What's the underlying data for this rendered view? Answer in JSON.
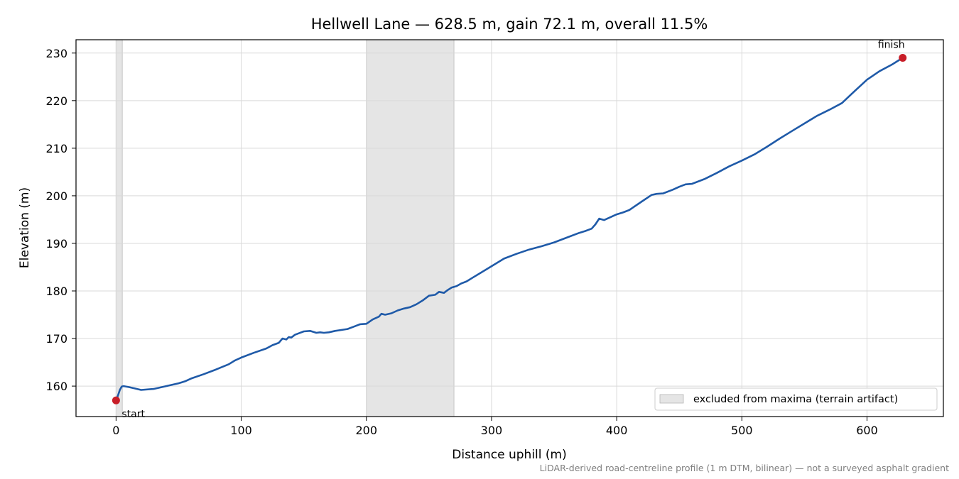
{
  "chart_data": {
    "type": "line",
    "title": "Hellwell Lane — 628.5 m, gain 72.1 m, overall 11.5%",
    "xlabel": "Distance uphill (m)",
    "ylabel": "Elevation (m)",
    "xlim": [
      -32,
      661
    ],
    "ylim": [
      153.6,
      232.8
    ],
    "xticks": [
      0,
      100,
      200,
      300,
      400,
      500,
      600
    ],
    "yticks": [
      160,
      170,
      180,
      190,
      200,
      210,
      220,
      230
    ],
    "grid": true,
    "legend_position": "lower-right",
    "colors": {
      "line": "#1f5aa8",
      "marker": "#c81e28",
      "band": "#d3d3d3"
    },
    "excluded_ranges": [
      [
        0,
        5
      ],
      [
        200,
        270
      ]
    ],
    "legend": {
      "label": "excluded from maxima (terrain artifact)"
    },
    "markers": [
      {
        "label": "start",
        "x": 0,
        "y": 157.0
      },
      {
        "label": "finish",
        "x": 628.5,
        "y": 229.0
      }
    ],
    "footnote": "LiDAR-derived road-centreline profile (1 m DTM, bilinear) — not a surveyed asphalt gradient",
    "series": [
      {
        "x": [
          0,
          1.5,
          3,
          4.5,
          6,
          10,
          15,
          20,
          30,
          40,
          50,
          55,
          60,
          70,
          80,
          90,
          95,
          100,
          110,
          120,
          125,
          130,
          133,
          136,
          138,
          140,
          143,
          146,
          150,
          155,
          160,
          163,
          166,
          170,
          175,
          180,
          185,
          190,
          195,
          200,
          205,
          210,
          212,
          215,
          220,
          225,
          230,
          235,
          240,
          245,
          250,
          255,
          258,
          262,
          265,
          268,
          272,
          276,
          280,
          285,
          290,
          300,
          305,
          310,
          320,
          330,
          340,
          350,
          360,
          370,
          375,
          380,
          383,
          386,
          390,
          395,
          400,
          405,
          410,
          420,
          428,
          432,
          437,
          445,
          450,
          455,
          460,
          470,
          480,
          490,
          500,
          510,
          520,
          530,
          540,
          550,
          560,
          570,
          580,
          588,
          595,
          600,
          605,
          610,
          620,
          628.5
        ],
        "y": [
          157.0,
          158.0,
          159.2,
          159.9,
          160.0,
          159.8,
          159.5,
          159.2,
          159.4,
          160.0,
          160.6,
          161.0,
          161.6,
          162.5,
          163.5,
          164.6,
          165.4,
          166.0,
          167.0,
          167.9,
          168.6,
          169.1,
          170.0,
          169.8,
          170.3,
          170.2,
          170.8,
          171.1,
          171.5,
          171.6,
          171.2,
          171.3,
          171.2,
          171.3,
          171.6,
          171.8,
          172.0,
          172.5,
          173.0,
          173.1,
          174.0,
          174.6,
          175.2,
          175.0,
          175.3,
          175.9,
          176.3,
          176.6,
          177.2,
          178.0,
          179.0,
          179.2,
          179.8,
          179.6,
          180.2,
          180.7,
          181.0,
          181.6,
          182.0,
          182.8,
          183.6,
          185.2,
          186.0,
          186.8,
          187.8,
          188.7,
          189.4,
          190.2,
          191.2,
          192.2,
          192.6,
          193.1,
          194.0,
          195.2,
          194.9,
          195.5,
          196.1,
          196.5,
          197.0,
          198.8,
          200.2,
          200.4,
          200.5,
          201.3,
          201.9,
          202.4,
          202.5,
          203.5,
          204.8,
          206.2,
          207.4,
          208.7,
          210.3,
          212.0,
          213.6,
          215.2,
          216.8,
          218.1,
          219.5,
          221.5,
          223.2,
          224.4,
          225.3,
          226.2,
          227.6,
          229.0
        ]
      }
    ]
  }
}
